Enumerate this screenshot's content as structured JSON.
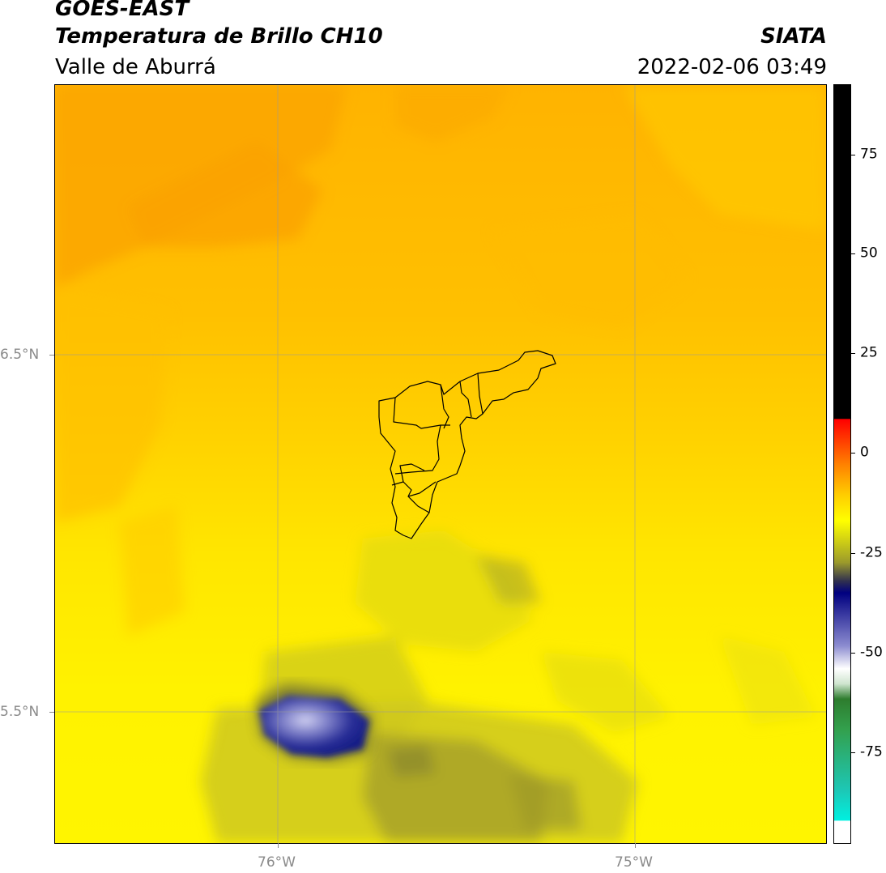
{
  "header": {
    "title1": "GOES-EAST",
    "title2": "Temperatura de Brillo CH10",
    "org": "SIATA",
    "region": "Valle de Aburrá",
    "datetime": "2022-02-06 03:49"
  },
  "map": {
    "lon_labels": [
      "76°W",
      "75°W"
    ],
    "lat_labels": [
      "6.5°N",
      "5.5°N"
    ],
    "colors": {
      "warm_orange": "#fca400",
      "orange": "#ffb400",
      "yellow_orange": "#ffd200",
      "yellow": "#ffee00",
      "bright_yellow": "#fff700",
      "olive": "#b7b123",
      "dark_olive": "#8d8b2d",
      "navy": "#131e8a",
      "lavender": "#a7a8da"
    }
  },
  "colorbar": {
    "ticks": [
      "75",
      "50",
      "25",
      "0",
      "-25",
      "-50",
      "-75"
    ],
    "colors": [
      "#000000",
      "#ff0000",
      "#ff8000",
      "#ffee00",
      "#8b8d2a",
      "#000080",
      "#ffffff",
      "#2e8b2e",
      "#00e5e5"
    ]
  }
}
